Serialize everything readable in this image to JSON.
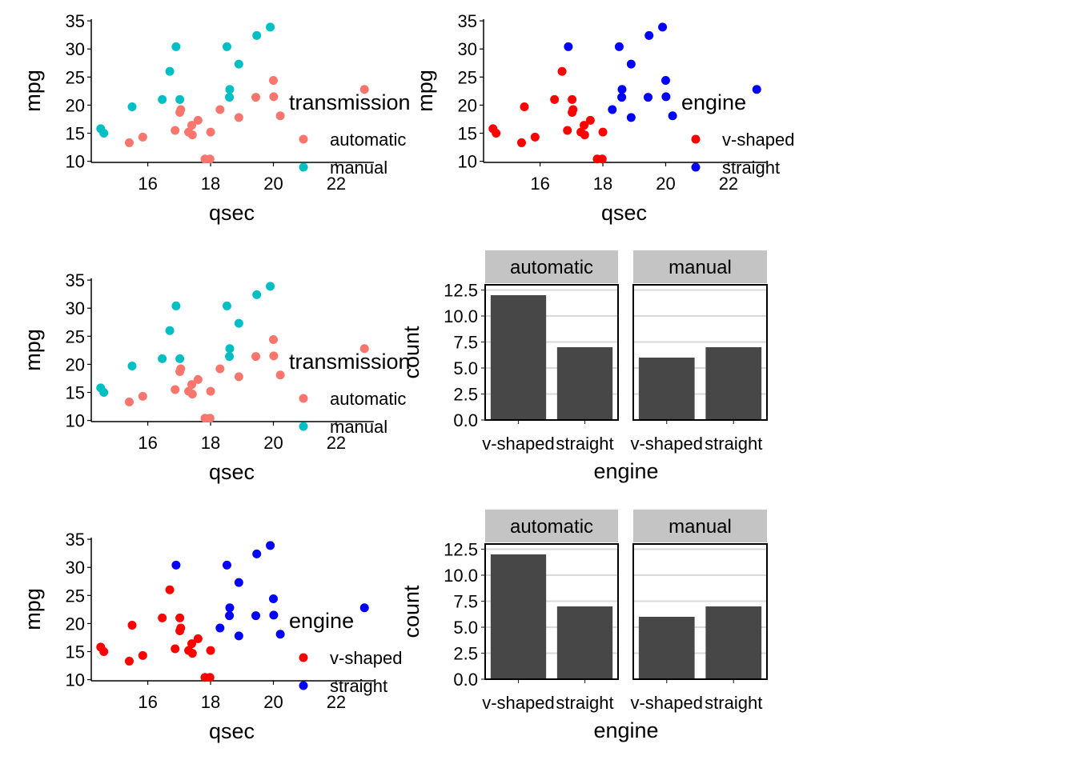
{
  "colors": {
    "automatic": "#F8766D",
    "manual": "#00BFC4",
    "v_shaped": "#FF0000",
    "straight": "#0000FF",
    "bar": "#474747",
    "strip_bg": "#C4C4C4",
    "grid": "#D9D9D9"
  },
  "chart_data": [
    {
      "type": "scatter",
      "xlabel": "qsec",
      "ylabel": "mpg",
      "xticks": [
        16,
        18,
        20,
        22
      ],
      "yticks": [
        10,
        15,
        20,
        25,
        30,
        35
      ],
      "xlim": [
        14.2,
        23.2
      ],
      "ylim": [
        9.8,
        35.3
      ],
      "legend": {
        "title": "transmission",
        "placement": "right",
        "labels": [
          "automatic",
          "manual"
        ]
      },
      "series": [
        {
          "name": "automatic",
          "color_key": "automatic",
          "x": [
            19.44,
            20.22,
            17.02,
            20.0,
            22.9,
            18.3,
            18.9,
            17.4,
            17.6,
            18.0,
            17.98,
            17.82,
            17.42,
            20.01,
            16.87,
            17.3,
            15.41,
            15.84,
            17.05
          ],
          "y": [
            21.4,
            18.1,
            18.7,
            24.4,
            22.8,
            19.2,
            17.8,
            16.4,
            17.3,
            15.2,
            10.4,
            10.4,
            14.7,
            21.5,
            15.5,
            15.2,
            13.3,
            14.3,
            19.2
          ]
        },
        {
          "name": "manual",
          "color_key": "manual",
          "x": [
            16.46,
            17.02,
            18.61,
            19.47,
            18.52,
            19.9,
            18.9,
            16.7,
            16.9,
            14.5,
            15.5,
            18.6,
            14.6
          ],
          "y": [
            21.0,
            21.0,
            22.8,
            32.4,
            30.4,
            33.9,
            27.3,
            26.0,
            30.4,
            15.8,
            19.7,
            21.4,
            15.0
          ]
        }
      ]
    },
    {
      "type": "scatter",
      "xlabel": "qsec",
      "ylabel": "mpg",
      "xticks": [
        16,
        18,
        20,
        22
      ],
      "yticks": [
        10,
        15,
        20,
        25,
        30,
        35
      ],
      "xlim": [
        14.2,
        23.2
      ],
      "ylim": [
        9.8,
        35.3
      ],
      "legend": {
        "title": "engine",
        "placement": "right",
        "labels": [
          "v-shaped",
          "straight"
        ]
      },
      "series": [
        {
          "name": "v-shaped",
          "color_key": "v_shaped",
          "x": [
            16.46,
            17.02,
            17.02,
            17.4,
            17.6,
            18.0,
            17.98,
            17.82,
            17.42,
            16.87,
            17.3,
            15.41,
            16.7,
            14.5,
            15.5,
            14.6,
            15.84,
            17.05
          ],
          "y": [
            21.0,
            21.0,
            18.7,
            16.4,
            17.3,
            15.2,
            10.4,
            10.4,
            14.7,
            15.5,
            15.2,
            13.3,
            26.0,
            15.8,
            19.7,
            15.0,
            14.3,
            19.2
          ]
        },
        {
          "name": "straight",
          "color_key": "straight",
          "x": [
            18.61,
            19.44,
            20.22,
            20.0,
            22.9,
            18.3,
            18.9,
            19.47,
            18.52,
            19.9,
            20.01,
            18.9,
            16.9,
            18.6
          ],
          "y": [
            22.8,
            21.4,
            18.1,
            24.4,
            22.8,
            19.2,
            17.8,
            32.4,
            30.4,
            33.9,
            21.5,
            27.3,
            30.4,
            21.4
          ]
        }
      ]
    },
    {
      "type": "scatter",
      "xlabel": "qsec",
      "ylabel": "mpg",
      "xticks": [
        16,
        18,
        20,
        22
      ],
      "yticks": [
        10,
        15,
        20,
        25,
        30,
        35
      ],
      "xlim": [
        14.2,
        23.2
      ],
      "ylim": [
        9.8,
        35.3
      ],
      "legend": {
        "title": "transmission",
        "placement": "right",
        "labels": [
          "automatic",
          "manual"
        ]
      },
      "series": [
        {
          "name": "automatic",
          "color_key": "automatic",
          "x": [
            19.44,
            20.22,
            17.02,
            20.0,
            22.9,
            18.3,
            18.9,
            17.4,
            17.6,
            18.0,
            17.98,
            17.82,
            17.42,
            20.01,
            16.87,
            17.3,
            15.41,
            15.84,
            17.05
          ],
          "y": [
            21.4,
            18.1,
            18.7,
            24.4,
            22.8,
            19.2,
            17.8,
            16.4,
            17.3,
            15.2,
            10.4,
            10.4,
            14.7,
            21.5,
            15.5,
            15.2,
            13.3,
            14.3,
            19.2
          ]
        },
        {
          "name": "manual",
          "color_key": "manual",
          "x": [
            16.46,
            17.02,
            18.61,
            19.47,
            18.52,
            19.9,
            18.9,
            16.7,
            16.9,
            14.5,
            15.5,
            18.6,
            14.6
          ],
          "y": [
            21.0,
            21.0,
            22.8,
            32.4,
            30.4,
            33.9,
            27.3,
            26.0,
            30.4,
            15.8,
            19.7,
            21.4,
            15.0
          ]
        }
      ]
    },
    {
      "type": "bar",
      "xlabel": "engine",
      "ylabel": "count",
      "categories": [
        "v-shaped",
        "straight"
      ],
      "yticks": [
        "0.0",
        "2.5",
        "5.0",
        "7.5",
        "10.0",
        "12.5"
      ],
      "ylim": [
        0,
        13
      ],
      "grid": true,
      "facets": [
        {
          "label": "automatic",
          "values": [
            12,
            7
          ]
        },
        {
          "label": "manual",
          "values": [
            6,
            7
          ]
        }
      ]
    },
    {
      "type": "scatter",
      "xlabel": "qsec",
      "ylabel": "mpg",
      "xticks": [
        16,
        18,
        20,
        22
      ],
      "yticks": [
        10,
        15,
        20,
        25,
        30,
        35
      ],
      "xlim": [
        14.2,
        23.2
      ],
      "ylim": [
        9.8,
        35.3
      ],
      "legend": {
        "title": "engine",
        "placement": "right",
        "labels": [
          "v-shaped",
          "straight"
        ]
      },
      "series": [
        {
          "name": "v-shaped",
          "color_key": "v_shaped",
          "x": [
            16.46,
            17.02,
            17.02,
            17.4,
            17.6,
            18.0,
            17.98,
            17.82,
            17.42,
            16.87,
            17.3,
            15.41,
            16.7,
            14.5,
            15.5,
            14.6,
            15.84,
            17.05
          ],
          "y": [
            21.0,
            21.0,
            18.7,
            16.4,
            17.3,
            15.2,
            10.4,
            10.4,
            14.7,
            15.5,
            15.2,
            13.3,
            26.0,
            15.8,
            19.7,
            15.0,
            14.3,
            19.2
          ]
        },
        {
          "name": "straight",
          "color_key": "straight",
          "x": [
            18.61,
            19.44,
            20.22,
            20.0,
            22.9,
            18.3,
            18.9,
            19.47,
            18.52,
            19.9,
            20.01,
            18.9,
            16.9,
            18.6
          ],
          "y": [
            22.8,
            21.4,
            18.1,
            24.4,
            22.8,
            19.2,
            17.8,
            32.4,
            30.4,
            33.9,
            21.5,
            27.3,
            30.4,
            21.4
          ]
        }
      ]
    },
    {
      "type": "bar",
      "xlabel": "engine",
      "ylabel": "count",
      "categories": [
        "v-shaped",
        "straight"
      ],
      "yticks": [
        "0.0",
        "2.5",
        "5.0",
        "7.5",
        "10.0",
        "12.5"
      ],
      "ylim": [
        0,
        13
      ],
      "grid": true,
      "facets": [
        {
          "label": "automatic",
          "values": [
            12,
            7
          ]
        },
        {
          "label": "manual",
          "values": [
            6,
            7
          ]
        }
      ]
    }
  ]
}
